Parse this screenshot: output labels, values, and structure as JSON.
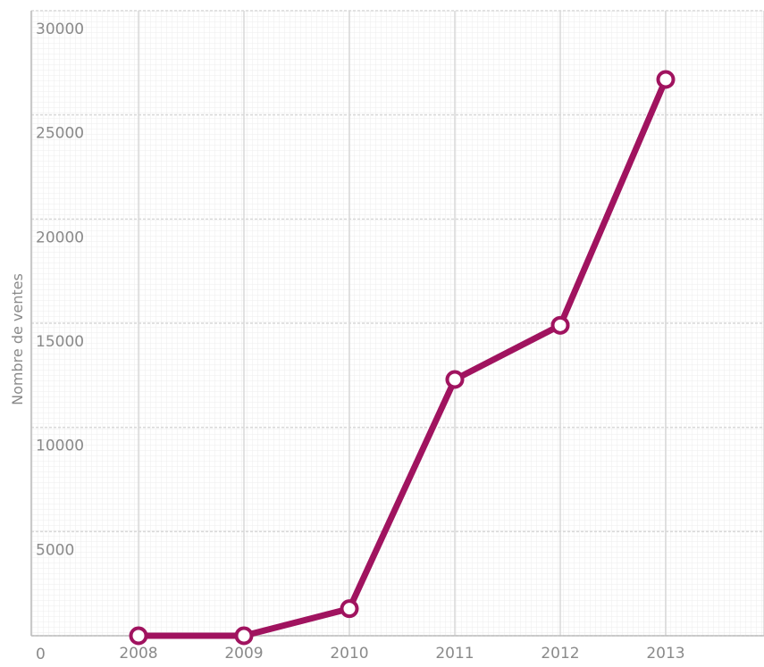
{
  "chart_data": {
    "type": "line",
    "title": "",
    "xlabel": "",
    "ylabel": "Nombre de ventes",
    "categories": [
      "2008",
      "2009",
      "2010",
      "2011",
      "2012",
      "2013"
    ],
    "series": [
      {
        "values": [
          0,
          0,
          1300,
          12300,
          14900,
          26700
        ]
      }
    ],
    "yticks": [
      0,
      5000,
      10000,
      15000,
      20000,
      25000,
      30000
    ],
    "ylim": [
      0,
      30000
    ],
    "grid": true,
    "legend": "none",
    "colors": {
      "line": "#a0135f",
      "marker_fill": "#ffffff",
      "grid": "#d9d9d9",
      "text": "#8a8a8a"
    }
  }
}
